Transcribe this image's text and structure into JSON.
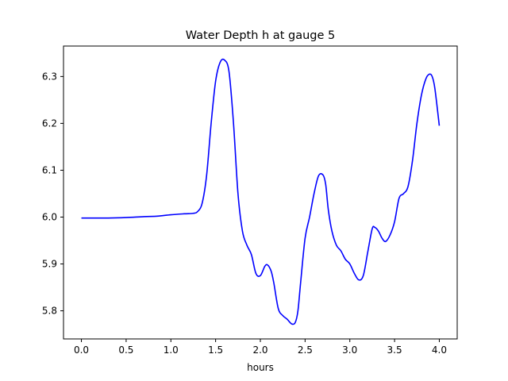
{
  "chart_data": {
    "type": "line",
    "title": "Water Depth h at gauge 5",
    "xlabel": "hours",
    "ylabel": "",
    "xlim": [
      -0.2,
      4.2
    ],
    "ylim": [
      5.74,
      6.365
    ],
    "xticks": [
      0.0,
      0.5,
      1.0,
      1.5,
      2.0,
      2.5,
      3.0,
      3.5,
      4.0
    ],
    "xtick_labels": [
      "0.0",
      "0.5",
      "1.0",
      "1.5",
      "2.0",
      "2.5",
      "3.0",
      "3.5",
      "4.0"
    ],
    "yticks": [
      5.8,
      5.9,
      6.0,
      6.1,
      6.2,
      6.3
    ],
    "ytick_labels": [
      "5.8",
      "5.9",
      "6.0",
      "6.1",
      "6.2",
      "6.3"
    ],
    "grid": false,
    "legend": "none",
    "series": [
      {
        "color": "#0000ff",
        "x": [
          0.0,
          0.3,
          0.5,
          0.7,
          0.85,
          1.0,
          1.15,
          1.25,
          1.3,
          1.35,
          1.4,
          1.45,
          1.5,
          1.55,
          1.6,
          1.65,
          1.7,
          1.75,
          1.8,
          1.85,
          1.9,
          1.95,
          2.0,
          2.05,
          2.08,
          2.12,
          2.15,
          2.2,
          2.25,
          2.3,
          2.35,
          2.39,
          2.42,
          2.45,
          2.5,
          2.55,
          2.6,
          2.65,
          2.7,
          2.73,
          2.76,
          2.8,
          2.85,
          2.9,
          2.95,
          3.0,
          3.05,
          3.1,
          3.15,
          3.2,
          3.25,
          3.28,
          3.32,
          3.36,
          3.4,
          3.45,
          3.5,
          3.55,
          3.6,
          3.65,
          3.7,
          3.75,
          3.8,
          3.85,
          3.89,
          3.92,
          3.95,
          4.0
        ],
        "y": [
          5.998,
          5.998,
          5.999,
          6.001,
          6.002,
          6.005,
          6.007,
          6.008,
          6.012,
          6.03,
          6.09,
          6.2,
          6.29,
          6.33,
          6.335,
          6.31,
          6.2,
          6.05,
          5.97,
          5.94,
          5.92,
          5.88,
          5.875,
          5.895,
          5.898,
          5.885,
          5.86,
          5.805,
          5.79,
          5.782,
          5.772,
          5.775,
          5.8,
          5.86,
          5.955,
          6.0,
          6.05,
          6.088,
          6.09,
          6.07,
          6.015,
          5.97,
          5.94,
          5.928,
          5.91,
          5.9,
          5.88,
          5.866,
          5.875,
          5.925,
          5.975,
          5.978,
          5.97,
          5.955,
          5.948,
          5.962,
          5.99,
          6.04,
          6.05,
          6.065,
          6.12,
          6.2,
          6.26,
          6.295,
          6.305,
          6.3,
          6.275,
          6.195
        ]
      }
    ]
  }
}
